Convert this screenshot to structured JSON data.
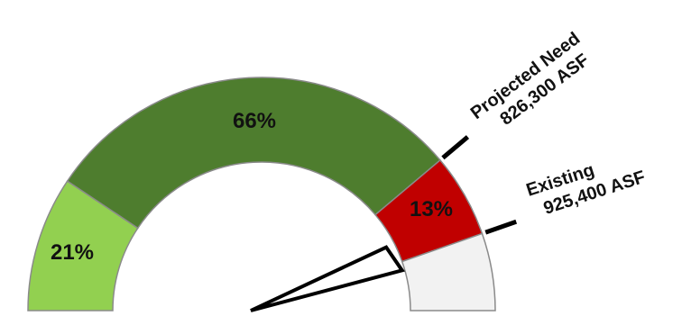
{
  "chart_data": {
    "type": "gauge",
    "segments": [
      {
        "label": "21%",
        "value": 21,
        "color": "#92d050"
      },
      {
        "label": "66%",
        "value": 66,
        "color": "#4e7d2e"
      },
      {
        "label": "13%",
        "value": 13,
        "color": "#c00000"
      },
      {
        "label": "",
        "value": 12,
        "color": "#f2f2f2"
      }
    ],
    "markers": [
      {
        "name": "projected-need",
        "lines": [
          "Projected Need",
          "826,300 ASF"
        ],
        "value": 826300
      },
      {
        "name": "existing",
        "lines": [
          "Existing",
          "925,400 ASF"
        ],
        "value": 925400
      }
    ]
  }
}
